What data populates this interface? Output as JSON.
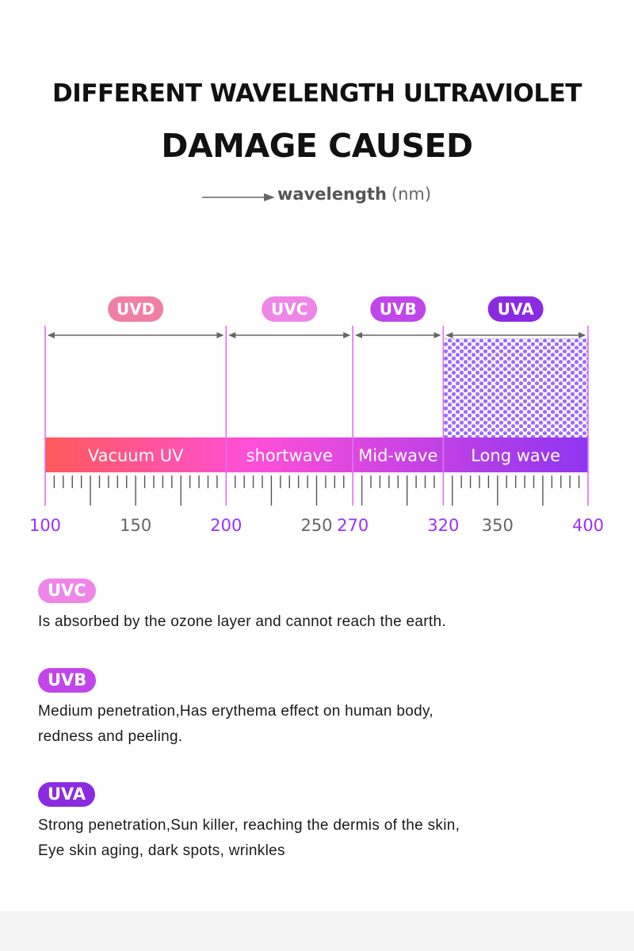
{
  "header": {
    "title_line1": "DIFFERENT WAVELENGTH ULTRAVIOLET",
    "title_line2": "DAMAGE CAUSED",
    "axis_word": "wavelength",
    "axis_unit": "(nm)"
  },
  "diagram": {
    "scale_min": 100,
    "scale_max": 400,
    "boundaries": [
      100,
      200,
      270,
      320,
      400
    ],
    "tick_labels": [
      {
        "value": 100,
        "label": "100",
        "highlight": true
      },
      {
        "value": 150,
        "label": "150",
        "highlight": false
      },
      {
        "value": 200,
        "label": "200",
        "highlight": true
      },
      {
        "value": 250,
        "label": "250",
        "highlight": false
      },
      {
        "value": 270,
        "label": "270",
        "highlight": true
      },
      {
        "value": 320,
        "label": "320",
        "highlight": true
      },
      {
        "value": 350,
        "label": "350",
        "highlight": false
      },
      {
        "value": 400,
        "label": "400",
        "highlight": true
      }
    ],
    "bands": [
      {
        "badge": "UVD",
        "name": "Vacuum UV",
        "from": 100,
        "to": 200,
        "color": "#f07fa6"
      },
      {
        "badge": "UVC",
        "name": "shortwave",
        "from": 200,
        "to": 270,
        "color": "#ee86e8"
      },
      {
        "badge": "UVB",
        "name": "Mid-wave",
        "from": 270,
        "to": 320,
        "color": "#c046ea"
      },
      {
        "badge": "UVA",
        "name": "Long wave",
        "from": 320,
        "to": 400,
        "color": "#8a2be2"
      }
    ]
  },
  "descriptions": [
    {
      "badge": "UVC",
      "color": "#ee86e8",
      "lines": [
        "Is absorbed by the ozone layer and cannot reach the earth."
      ]
    },
    {
      "badge": "UVB",
      "color": "#c046ea",
      "lines": [
        "Medium penetration,Has erythema effect on human body,",
        "redness and peeling."
      ]
    },
    {
      "badge": "UVA",
      "color": "#8a2be2",
      "lines": [
        "Strong penetration,Sun killer, reaching the dermis of the skin,",
        "Eye skin aging, dark spots, wrinkles"
      ]
    }
  ],
  "colors": {
    "accent_purple": "#9b30ff",
    "grad_start": "#ff5a5a",
    "grad_mid": "#ff4fd8",
    "grad_end": "#8e36f0",
    "dot_fill": "#9f6bff"
  }
}
